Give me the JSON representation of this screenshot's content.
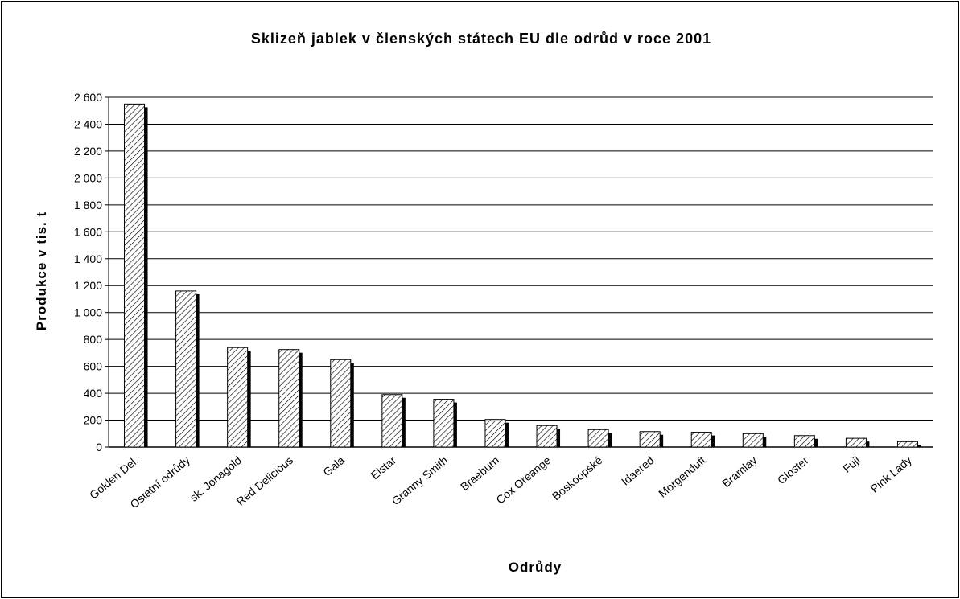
{
  "chart_data": {
    "type": "bar",
    "title": "Sklizeň jablek v členských státech EU dle odrůd v roce 2001",
    "xlabel": "Odrůdy",
    "ylabel": "Produkce v tis. t",
    "ylim": [
      0,
      2600
    ],
    "yticks": [
      0,
      200,
      400,
      600,
      800,
      1000,
      1200,
      1400,
      1600,
      1800,
      2000,
      2200,
      2400,
      2600
    ],
    "ytick_labels": [
      "0",
      "200",
      "400",
      "600",
      "800",
      "1 000",
      "1 200",
      "1 400",
      "1 600",
      "1 800",
      "2 000",
      "2 200",
      "2 400",
      "2 600"
    ],
    "grid": true,
    "categories": [
      "Golden Del.",
      "Ostatní odrůdy",
      "sk. Jonagold",
      "Red Delicious",
      "Gala",
      "Elstar",
      "Granny Smith",
      "Braeburn",
      "Cox Oreange",
      "Boskoopské",
      "Idaered",
      "Morgenduft",
      "Bramlay",
      "Gloster",
      "Fuji",
      "Pink Lady"
    ],
    "values": [
      2550,
      1160,
      740,
      725,
      650,
      390,
      355,
      205,
      160,
      130,
      115,
      110,
      100,
      85,
      65,
      40
    ],
    "colors": {
      "bar_fill": "#ffffff",
      "bar_hatch": "#000000",
      "shadow": "#000000",
      "grid": "#000000"
    }
  }
}
